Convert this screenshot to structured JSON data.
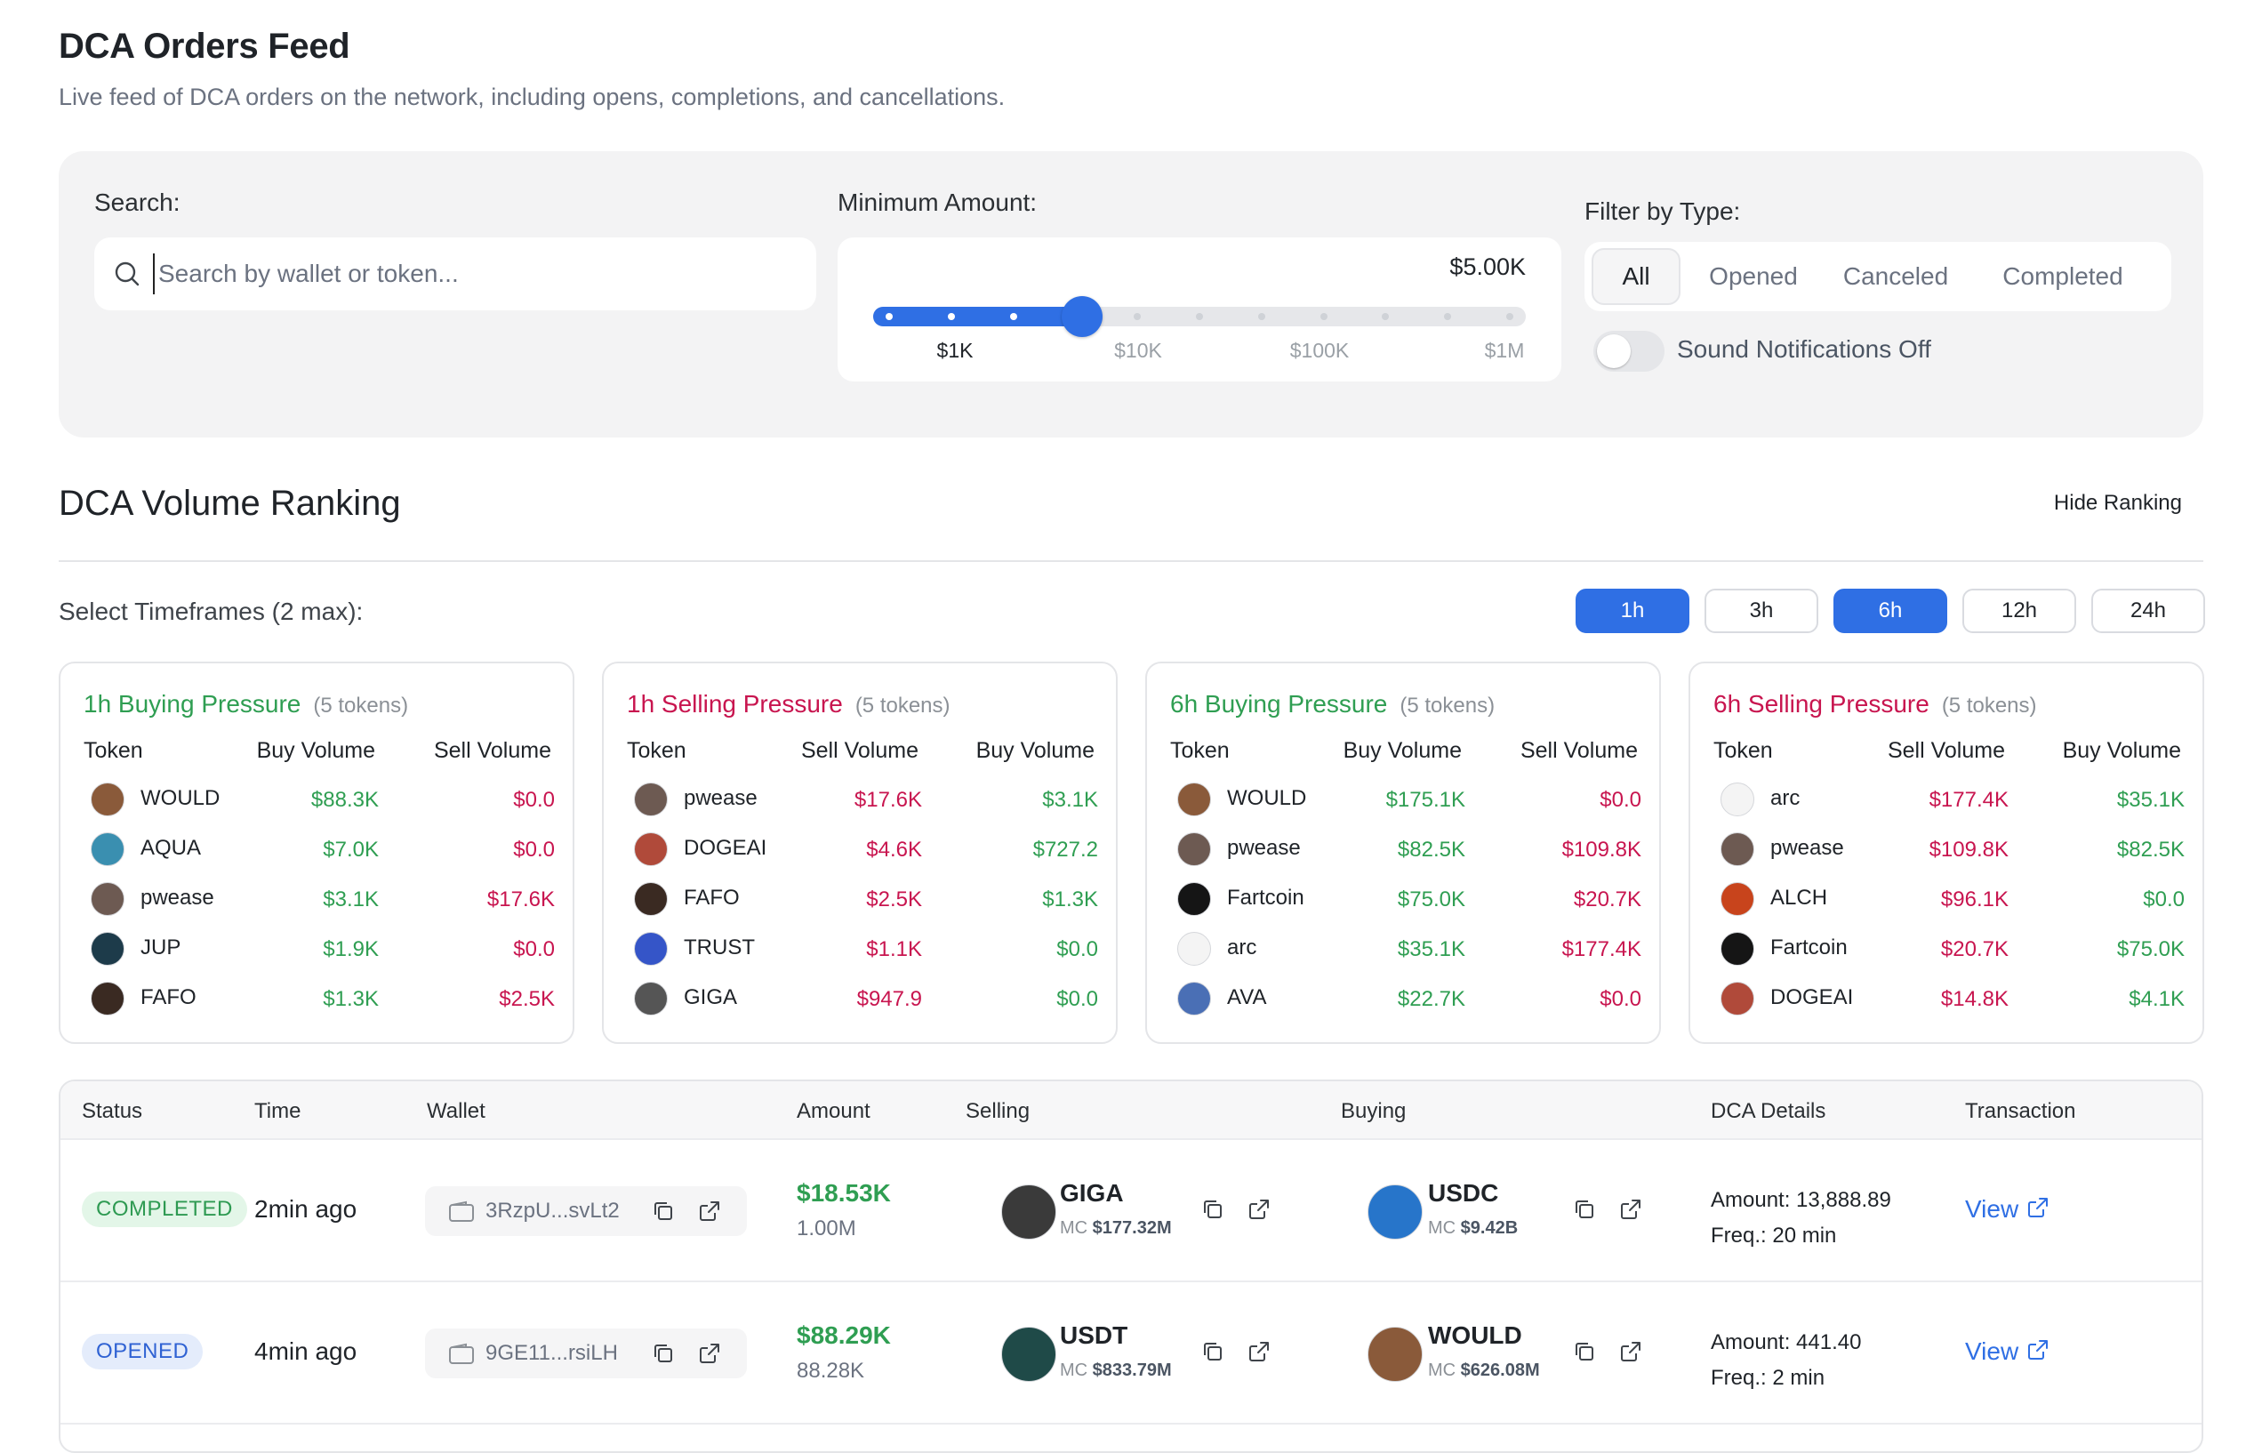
{
  "header": {
    "title": "DCA Orders Feed",
    "subtitle": "Live feed of DCA orders on the network, including opens, completions, and cancellations."
  },
  "filters": {
    "search_label": "Search:",
    "search_placeholder": "Search by wallet or token...",
    "min_amount_label": "Minimum Amount:",
    "min_amount_value": "$5.00K",
    "slider_level": 0.32,
    "slider_ticks": [
      "$1K",
      "$10K",
      "$100K",
      "$1M"
    ],
    "type_label": "Filter by Type:",
    "types": [
      "All",
      "Opened",
      "Canceled",
      "Completed"
    ],
    "selected_type": "All",
    "sound_label": "Sound Notifications Off",
    "sound_on": false
  },
  "ranking": {
    "title": "DCA Volume Ranking",
    "hide_label": "Hide Ranking",
    "timeframes_label": "Select Timeframes (2 max):",
    "timeframes": [
      {
        "label": "1h",
        "selected": true
      },
      {
        "label": "3h",
        "selected": false
      },
      {
        "label": "6h",
        "selected": true
      },
      {
        "label": "12h",
        "selected": false
      },
      {
        "label": "24h",
        "selected": false
      }
    ],
    "cards": [
      {
        "title": "1h Buying Pressure",
        "count": "(5 tokens)",
        "kind": "buy",
        "headers": [
          "Token",
          "Buy Volume",
          "Sell Volume"
        ],
        "rows": [
          {
            "token": "WOULD",
            "a": "$88.3K",
            "b": "$0.0",
            "avatar": "#8a5a3a"
          },
          {
            "token": "AQUA",
            "a": "$7.0K",
            "b": "$0.0",
            "avatar": "#3a8fb0"
          },
          {
            "token": "pwease",
            "a": "$3.1K",
            "b": "$17.6K",
            "avatar": "#6d5a52"
          },
          {
            "token": "JUP",
            "a": "$1.9K",
            "b": "$0.0",
            "avatar": "#1d3b4a"
          },
          {
            "token": "FAFO",
            "a": "$1.3K",
            "b": "$2.5K",
            "avatar": "#3a2a22"
          }
        ]
      },
      {
        "title": "1h Selling Pressure",
        "count": "(5 tokens)",
        "kind": "sell",
        "headers": [
          "Token",
          "Sell Volume",
          "Buy Volume"
        ],
        "rows": [
          {
            "token": "pwease",
            "a": "$17.6K",
            "b": "$3.1K",
            "avatar": "#6d5a52"
          },
          {
            "token": "DOGEAI",
            "a": "$4.6K",
            "b": "$727.2",
            "avatar": "#b04a3a"
          },
          {
            "token": "FAFO",
            "a": "$2.5K",
            "b": "$1.3K",
            "avatar": "#3a2a22"
          },
          {
            "token": "TRUST",
            "a": "$1.1K",
            "b": "$0.0",
            "avatar": "#3555c8"
          },
          {
            "token": "GIGA",
            "a": "$947.9",
            "b": "$0.0",
            "avatar": "#555555"
          }
        ]
      },
      {
        "title": "6h Buying Pressure",
        "count": "(5 tokens)",
        "kind": "buy",
        "headers": [
          "Token",
          "Buy Volume",
          "Sell Volume"
        ],
        "rows": [
          {
            "token": "WOULD",
            "a": "$175.1K",
            "b": "$0.0",
            "avatar": "#8a5a3a"
          },
          {
            "token": "pwease",
            "a": "$82.5K",
            "b": "$109.8K",
            "avatar": "#6d5a52"
          },
          {
            "token": "Fartcoin",
            "a": "$75.0K",
            "b": "$20.7K",
            "avatar": "#151515"
          },
          {
            "token": "arc",
            "a": "$35.1K",
            "b": "$177.4K",
            "avatar": "#f4f4f4"
          },
          {
            "token": "AVA",
            "a": "$22.7K",
            "b": "$0.0",
            "avatar": "#4a6fb5"
          }
        ]
      },
      {
        "title": "6h Selling Pressure",
        "count": "(5 tokens)",
        "kind": "sell",
        "headers": [
          "Token",
          "Sell Volume",
          "Buy Volume"
        ],
        "rows": [
          {
            "token": "arc",
            "a": "$177.4K",
            "b": "$35.1K",
            "avatar": "#f4f4f4"
          },
          {
            "token": "pwease",
            "a": "$109.8K",
            "b": "$82.5K",
            "avatar": "#6d5a52"
          },
          {
            "token": "ALCH",
            "a": "$96.1K",
            "b": "$0.0",
            "avatar": "#c8441c"
          },
          {
            "token": "Fartcoin",
            "a": "$20.7K",
            "b": "$75.0K",
            "avatar": "#151515"
          },
          {
            "token": "DOGEAI",
            "a": "$14.8K",
            "b": "$4.1K",
            "avatar": "#b04a3a"
          }
        ]
      }
    ]
  },
  "table": {
    "headers": [
      "Status",
      "Time",
      "Wallet",
      "Amount",
      "Selling",
      "Buying",
      "DCA Details",
      "Transaction"
    ],
    "rows": [
      {
        "status": "COMPLETED",
        "status_kind": "completed",
        "time": "2min ago",
        "wallet": "3RzpU...svLt2",
        "amount": "$18.53K",
        "amount_sub": "1.00M",
        "selling": {
          "symbol": "GIGA",
          "mc_label": "MC",
          "mc": "$177.32M",
          "color": "#3a3a3a"
        },
        "buying": {
          "symbol": "USDC",
          "mc_label": "MC",
          "mc": "$9.42B",
          "color": "#2775ca"
        },
        "dca_amount": "Amount: 13,888.89",
        "dca_freq": "Freq.: 20 min",
        "view": "View"
      },
      {
        "status": "OPENED",
        "status_kind": "opened",
        "time": "4min ago",
        "wallet": "9GE11...rsiLH",
        "amount": "$88.29K",
        "amount_sub": "88.28K",
        "selling": {
          "symbol": "USDT",
          "mc_label": "MC",
          "mc": "$833.79M",
          "color": "#1f4a48"
        },
        "buying": {
          "symbol": "WOULD",
          "mc_label": "MC",
          "mc": "$626.08M",
          "color": "#8a5a3a"
        },
        "dca_amount": "Amount: 441.40",
        "dca_freq": "Freq.: 2 min",
        "view": "View"
      }
    ]
  },
  "colors": {
    "accent": "#2f6fe4",
    "buy": "#2f9e52",
    "sell": "#c8154f",
    "panel": "#f3f3f4"
  },
  "icons": [
    "search-icon",
    "wallet-icon",
    "copy-icon",
    "external-link-icon"
  ]
}
